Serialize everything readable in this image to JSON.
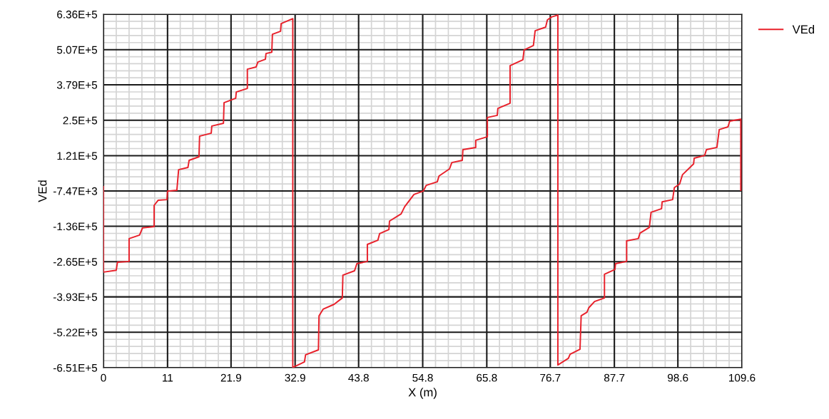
{
  "chart_data": {
    "type": "line",
    "xlabel": "X (m)",
    "ylabel": "VEd",
    "xlim": [
      0,
      109.6
    ],
    "xticks": [
      0,
      11,
      21.9,
      32.9,
      43.8,
      54.8,
      65.8,
      76.7,
      87.7,
      98.6,
      109.6
    ],
    "ylim": [
      -651000,
      636000
    ],
    "yticks": [
      {
        "value": -651000,
        "label": "-6.51E+5"
      },
      {
        "value": -522000,
        "label": "-5.22E+5"
      },
      {
        "value": -393000,
        "label": "-3.93E+5"
      },
      {
        "value": -265000,
        "label": "-2.65E+5"
      },
      {
        "value": -136000,
        "label": "-1.36E+5"
      },
      {
        "value": -7470,
        "label": "-7.47E+3"
      },
      {
        "value": 121000,
        "label": "1.21E+5"
      },
      {
        "value": 250000,
        "label": "2.5E+5"
      },
      {
        "value": 379000,
        "label": "3.79E+5"
      },
      {
        "value": 507000,
        "label": "5.07E+5"
      },
      {
        "value": 636000,
        "label": "6.36E+5"
      }
    ],
    "grid": true,
    "legend": "top right",
    "marker": "none",
    "line_style": "solid",
    "series": [
      {
        "name": "VEd",
        "color": "#e8202a",
        "x": [
          0,
          0,
          2.2,
          2.4,
          4.4,
          4.4,
          6.2,
          6.7,
          8.7,
          8.7,
          9.4,
          10.9,
          11.0,
          12.6,
          12.9,
          14.5,
          14.7,
          16.4,
          16.5,
          18.5,
          18.6,
          20.6,
          20.7,
          22.7,
          22.8,
          24.7,
          24.7,
          26.2,
          26.5,
          27.8,
          27.9,
          28.9,
          29.0,
          30.4,
          30.5,
          32.5,
          32.5,
          34.5,
          34.7,
          36.9,
          37.0,
          37.7,
          39.6,
          41.0,
          41.1,
          43.1,
          43.5,
          45.3,
          45.3,
          47.1,
          47.4,
          49.0,
          49.1,
          51.1,
          51.7,
          53.3,
          54.9,
          55.4,
          57.3,
          57.6,
          59.4,
          59.8,
          61.6,
          61.7,
          63.9,
          63.9,
          65.9,
          65.9,
          67.6,
          67.7,
          69.8,
          69.8,
          72.0,
          72.2,
          73.8,
          74.1,
          75.9,
          76.2,
          76.9,
          78.0,
          78.0,
          79.8,
          80.1,
          81.8,
          82.0,
          83.0,
          83.3,
          84.3,
          86.0,
          86.0,
          87.8,
          87.9,
          89.8,
          89.8,
          91.8,
          92.1,
          93.7,
          94.0,
          95.8,
          95.9,
          97.7,
          98.0,
          98.9,
          99.4,
          101.3,
          101.4,
          103.2,
          103.5,
          105.3,
          105.7,
          107.2,
          107.5,
          109.4,
          109.4
        ],
        "values": [
          8000,
          -303000,
          -296000,
          -267000,
          -264000,
          -181000,
          -168000,
          -142000,
          -137000,
          -60000,
          -41000,
          -39000,
          -8000,
          -5000,
          70000,
          78000,
          104000,
          117000,
          192000,
          203000,
          229000,
          239000,
          314000,
          330000,
          353000,
          366000,
          436000,
          444000,
          462000,
          472000,
          493000,
          498000,
          563000,
          574000,
          602000,
          620000,
          -650000,
          -630000,
          -604000,
          -586000,
          -462000,
          -438000,
          -420000,
          -397000,
          -314000,
          -298000,
          -272000,
          -264000,
          -202000,
          -187000,
          -163000,
          -148000,
          -117000,
          -91000,
          -65000,
          -20000,
          -8000,
          13000,
          26000,
          47000,
          73000,
          96000,
          104000,
          143000,
          151000,
          177000,
          190000,
          260000,
          268000,
          293000,
          312000,
          449000,
          470000,
          506000,
          522000,
          576000,
          589000,
          615000,
          626000,
          633000,
          -641000,
          -617000,
          -602000,
          -584000,
          -462000,
          -449000,
          -433000,
          -410000,
          -397000,
          -311000,
          -293000,
          -272000,
          -264000,
          -189000,
          -181000,
          -161000,
          -140000,
          -85000,
          -72000,
          -47000,
          -39000,
          5000,
          18000,
          52000,
          91000,
          112000,
          122000,
          143000,
          151000,
          216000,
          226000,
          247000,
          254000,
          -5000
        ]
      }
    ]
  }
}
